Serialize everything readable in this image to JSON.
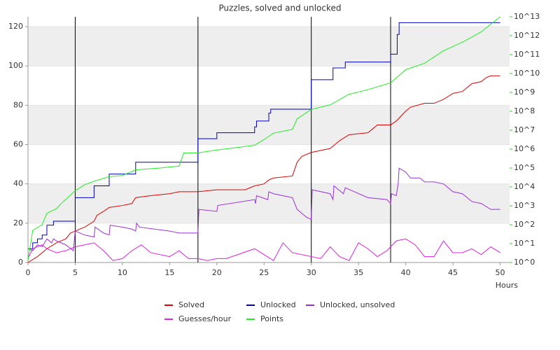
{
  "chart_data": {
    "type": "line",
    "title": "Puzzles, solved and unlocked",
    "xlabel": "Hours",
    "xlim": [
      0,
      51
    ],
    "xticks": [
      0,
      5,
      10,
      15,
      20,
      25,
      30,
      35,
      40,
      45,
      50
    ],
    "ylim": [
      0,
      125
    ],
    "yticks": [
      0,
      20,
      40,
      60,
      80,
      100,
      120
    ],
    "y2lim": [
      1,
      10000000000000
    ],
    "y2log": true,
    "y2color": "#22dd22",
    "y2ticks": [
      {
        "value": 1,
        "label": "10^0"
      },
      {
        "value": 10,
        "label": "10^1"
      },
      {
        "value": 100,
        "label": "10^2"
      },
      {
        "value": 1000,
        "label": "10^3"
      },
      {
        "value": 10000,
        "label": "10^4"
      },
      {
        "value": 100000,
        "label": "10^5"
      },
      {
        "value": 1000000,
        "label": "10^6"
      },
      {
        "value": 10000000,
        "label": "10^7"
      },
      {
        "value": 100000000,
        "label": "10^8"
      },
      {
        "value": 1000000000,
        "label": "10^9"
      },
      {
        "value": 10000000000,
        "label": "10^10"
      },
      {
        "value": 100000000000,
        "label": "10^11"
      },
      {
        "value": 1000000000000,
        "label": "10^12"
      },
      {
        "value": 10000000000000,
        "label": "10^13"
      }
    ],
    "grid": true,
    "vlines": [
      5,
      18,
      30,
      38.4
    ],
    "legend": "bottom",
    "series": [
      {
        "name": "Solved",
        "color": "#e00000",
        "x": [
          0,
          1,
          1.5,
          2,
          3,
          4,
          4.5,
          5,
          6,
          7,
          7.3,
          8,
          8.6,
          10,
          11,
          11.4,
          13,
          15,
          16,
          18,
          20,
          23,
          24,
          25,
          25.5,
          26,
          28,
          28.5,
          29,
          30,
          32,
          33,
          34,
          36,
          36.5,
          37,
          38.4,
          39,
          40,
          40.5,
          42,
          43,
          44,
          45,
          46,
          47,
          48,
          48.5,
          49,
          50
        ],
        "values": [
          0,
          3,
          5,
          7,
          10,
          12,
          15,
          16,
          18,
          21,
          24,
          26,
          28,
          29,
          30,
          33,
          34,
          35,
          36,
          36,
          37,
          37,
          39,
          40,
          42,
          43,
          44,
          51,
          54,
          56,
          58,
          62,
          65,
          66,
          68,
          70,
          70,
          72,
          77,
          79,
          81,
          81,
          83,
          86,
          87,
          91,
          92,
          94,
          95,
          95
        ]
      },
      {
        "name": "Unlocked",
        "color": "#0000c0",
        "step": true,
        "x": [
          0,
          0.5,
          1,
          1.5,
          2,
          2.7,
          5,
          7,
          8.6,
          11.4,
          18,
          20,
          24,
          24.2,
          25.5,
          25.7,
          30,
          32.3,
          33.6,
          38.4,
          39.1,
          39.3,
          50
        ],
        "values": [
          7,
          10,
          12,
          14,
          19,
          21,
          33,
          39,
          45,
          51,
          63,
          66,
          69,
          72,
          76,
          78,
          93,
          99,
          102,
          106,
          116,
          122,
          122
        ]
      },
      {
        "name": "Unlocked, unsolved",
        "color": "#9a30d8",
        "x": [
          0,
          0.5,
          1,
          1.5,
          2,
          2.5,
          2.7,
          3,
          4,
          4.8,
          5,
          6,
          7,
          7.1,
          8,
          8.6,
          8.7,
          10,
          11,
          11.4,
          11.5,
          11.8,
          15,
          16,
          18,
          18.1,
          20,
          20.1,
          24,
          24.1,
          24.2,
          25.4,
          25.5,
          26,
          28,
          28.5,
          29,
          29.5,
          30,
          30.1,
          32,
          32.3,
          32.4,
          33.4,
          33.6,
          36,
          38,
          38.4,
          38.5,
          39,
          39.2,
          39.3,
          40,
          40.5,
          41.5,
          42,
          43,
          44,
          45,
          46,
          47,
          48,
          49,
          50
        ],
        "values": [
          7,
          6,
          9,
          8,
          12,
          10,
          12,
          11,
          9,
          6,
          16,
          14,
          13,
          18,
          15,
          14,
          19,
          18,
          17,
          16,
          20,
          18,
          16,
          15,
          15,
          27,
          26,
          29,
          32,
          30,
          34,
          32,
          36,
          35,
          33,
          27,
          25,
          23,
          22,
          37,
          35,
          32,
          39,
          35,
          38,
          33,
          32,
          30,
          35,
          34,
          40,
          48,
          46,
          43,
          43,
          41,
          41,
          40,
          36,
          35,
          31,
          30,
          27,
          27
        ]
      },
      {
        "name": "Guesses/hour",
        "color": "#e020e0",
        "x": [
          0,
          0.5,
          1,
          1.5,
          2,
          3,
          4,
          5,
          6,
          7,
          8,
          9,
          10,
          11,
          12,
          13,
          15,
          16,
          17,
          18,
          19,
          20,
          21,
          24,
          26,
          27,
          28,
          31,
          32,
          33,
          34,
          35,
          36,
          37,
          38,
          39,
          40,
          41,
          42,
          43,
          44,
          45,
          46,
          47,
          48,
          49,
          50
        ],
        "values": [
          2,
          7,
          8,
          9,
          7,
          5,
          6,
          8,
          9,
          10,
          6,
          1,
          2,
          6,
          9,
          5,
          3,
          6,
          2,
          2,
          1,
          2,
          2,
          7,
          1,
          10,
          5,
          2,
          8,
          3,
          1,
          10,
          7,
          3,
          6,
          11,
          12,
          9,
          3,
          3,
          11,
          5,
          5,
          7,
          4,
          8,
          5
        ]
      },
      {
        "name": "Points",
        "color": "#22ee22",
        "axis": "y2",
        "x": [
          0,
          0.5,
          1.5,
          2,
          3,
          3.5,
          5,
          6,
          7,
          8.6,
          10,
          11.4,
          14,
          16,
          16.5,
          18,
          20,
          24,
          25,
          26,
          28,
          28.5,
          30,
          32,
          34,
          36,
          38.4,
          40,
          42,
          44,
          46,
          48,
          50
        ],
        "values": [
          1.26,
          50,
          100,
          400,
          700,
          1300,
          6300,
          13000,
          20000,
          35000,
          40000,
          80000,
          100000,
          126000,
          630000,
          630000,
          890000,
          1600000,
          3200000,
          7000000,
          11000000,
          40000000,
          126000000,
          220000000,
          800000000,
          1400000000,
          3200000000,
          16000000000,
          35000000000,
          160000000000,
          450000000000,
          1600000000000,
          10000000000000
        ]
      }
    ]
  }
}
